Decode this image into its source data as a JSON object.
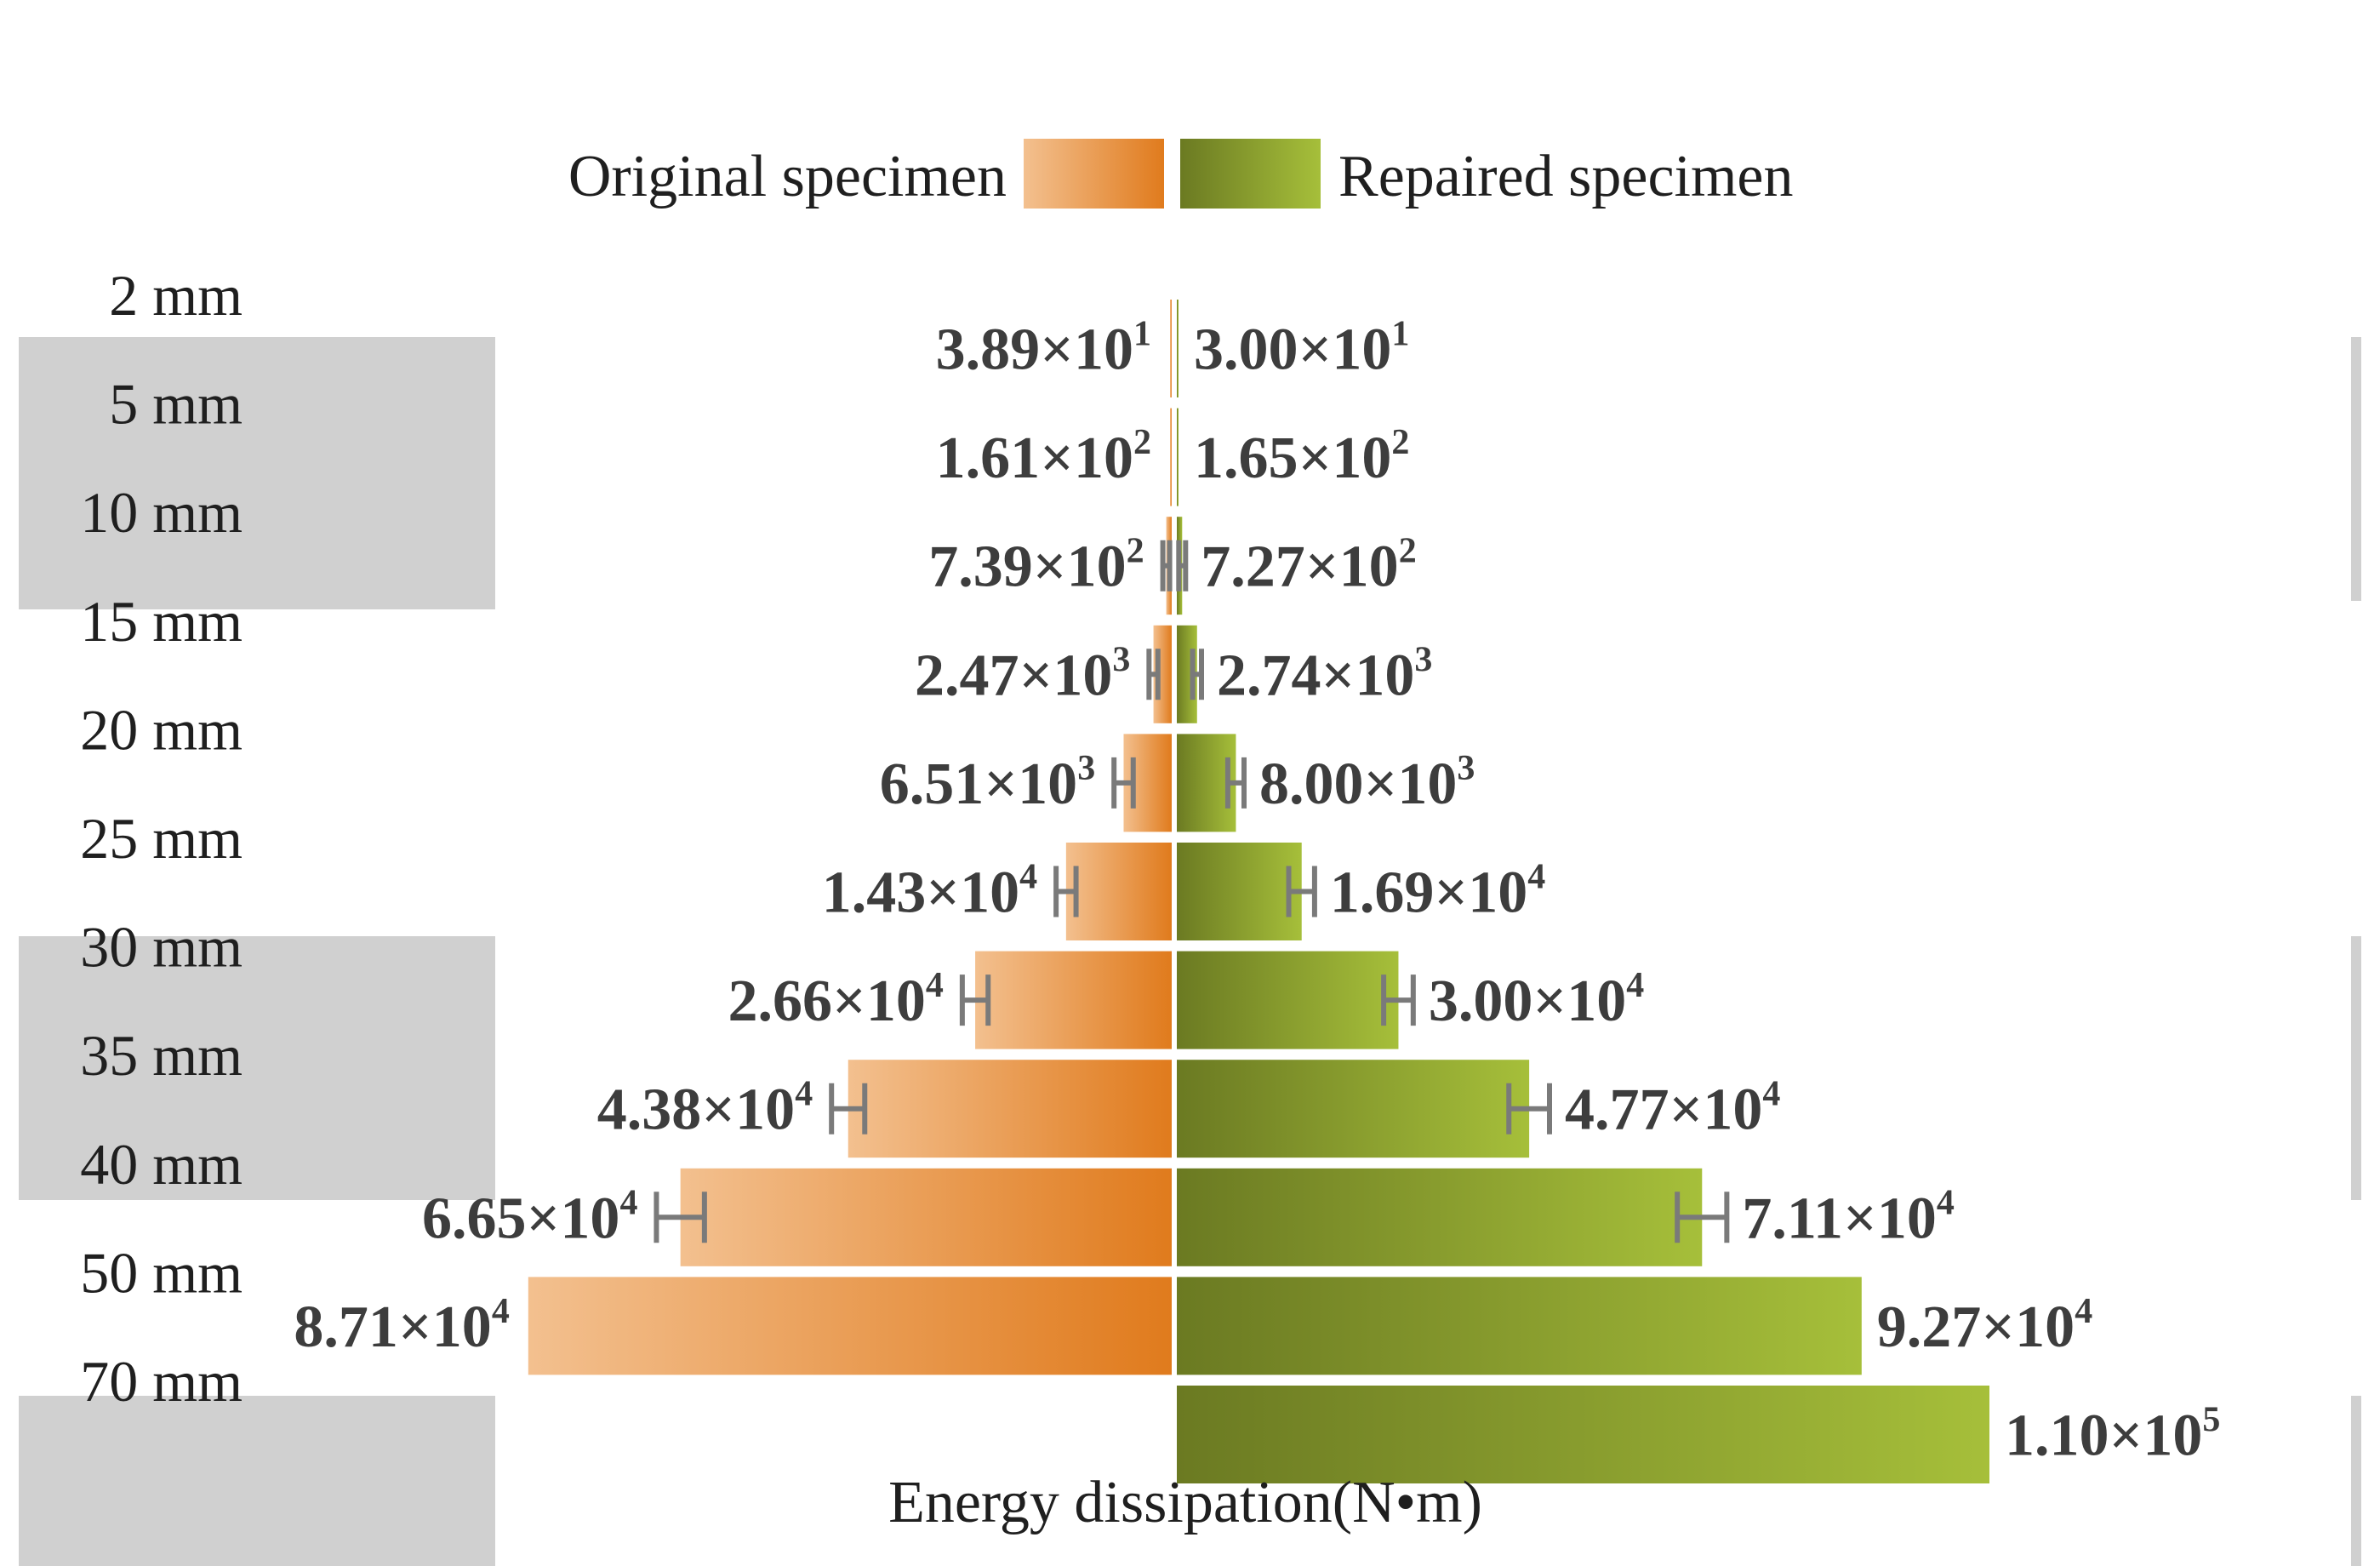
{
  "chart_data": {
    "type": "bar",
    "orientation": "horizontal-butterfly",
    "xlabel": "Energy dissipation(N•m)",
    "categories": [
      "2 mm",
      "5 mm",
      "10 mm",
      "15 mm",
      "20 mm",
      "25 mm",
      "30 mm",
      "35 mm",
      "40 mm",
      "50 mm",
      "70 mm"
    ],
    "series": [
      {
        "name": "Original specimen",
        "side": "left",
        "color_start": "#f3c08f",
        "color_end": "#e07b1d",
        "values": [
          38.9,
          161,
          739,
          2470,
          6510,
          14300,
          26600,
          43800,
          66500,
          87100,
          null
        ],
        "labels": [
          {
            "mantissa": "3.89×10",
            "exp": "1"
          },
          {
            "mantissa": "1.61×10",
            "exp": "2"
          },
          {
            "mantissa": "7.39×10",
            "exp": "2"
          },
          {
            "mantissa": "2.47×10",
            "exp": "3"
          },
          {
            "mantissa": "6.51×10",
            "exp": "3"
          },
          {
            "mantissa": "1.43×10",
            "exp": "4"
          },
          {
            "mantissa": "2.66×10",
            "exp": "4"
          },
          {
            "mantissa": "4.38×10",
            "exp": "4"
          },
          {
            "mantissa": "6.65×10",
            "exp": "4"
          },
          {
            "mantissa": "8.71×10",
            "exp": "4"
          },
          null
        ],
        "errors": [
          null,
          null,
          0,
          1200,
          2600,
          2700,
          3500,
          4500,
          6500,
          null,
          null
        ]
      },
      {
        "name": "Repaired specimen",
        "side": "right",
        "color_start": "#6b7a22",
        "color_end": "#a6bf3a",
        "values": [
          30.0,
          165,
          727,
          2740,
          8000,
          16900,
          30000,
          47700,
          71100,
          92700,
          110000
        ],
        "labels": [
          {
            "mantissa": "3.00×10",
            "exp": "1"
          },
          {
            "mantissa": "1.65×10",
            "exp": "2"
          },
          {
            "mantissa": "7.27×10",
            "exp": "2"
          },
          {
            "mantissa": "2.74×10",
            "exp": "3"
          },
          {
            "mantissa": "8.00×10",
            "exp": "3"
          },
          {
            "mantissa": "1.69×10",
            "exp": "4"
          },
          {
            "mantissa": "3.00×10",
            "exp": "4"
          },
          {
            "mantissa": "4.77×10",
            "exp": "4"
          },
          {
            "mantissa": "7.11×10",
            "exp": "4"
          },
          {
            "mantissa": "9.27×10",
            "exp": "4"
          },
          {
            "mantissa": "1.10×10",
            "exp": "5"
          }
        ],
        "errors": [
          null,
          null,
          0,
          1200,
          2200,
          3500,
          4000,
          5500,
          6700,
          null,
          null
        ]
      }
    ],
    "xlim": [
      0,
      110000
    ],
    "grid": false,
    "legend": "top-center"
  }
}
